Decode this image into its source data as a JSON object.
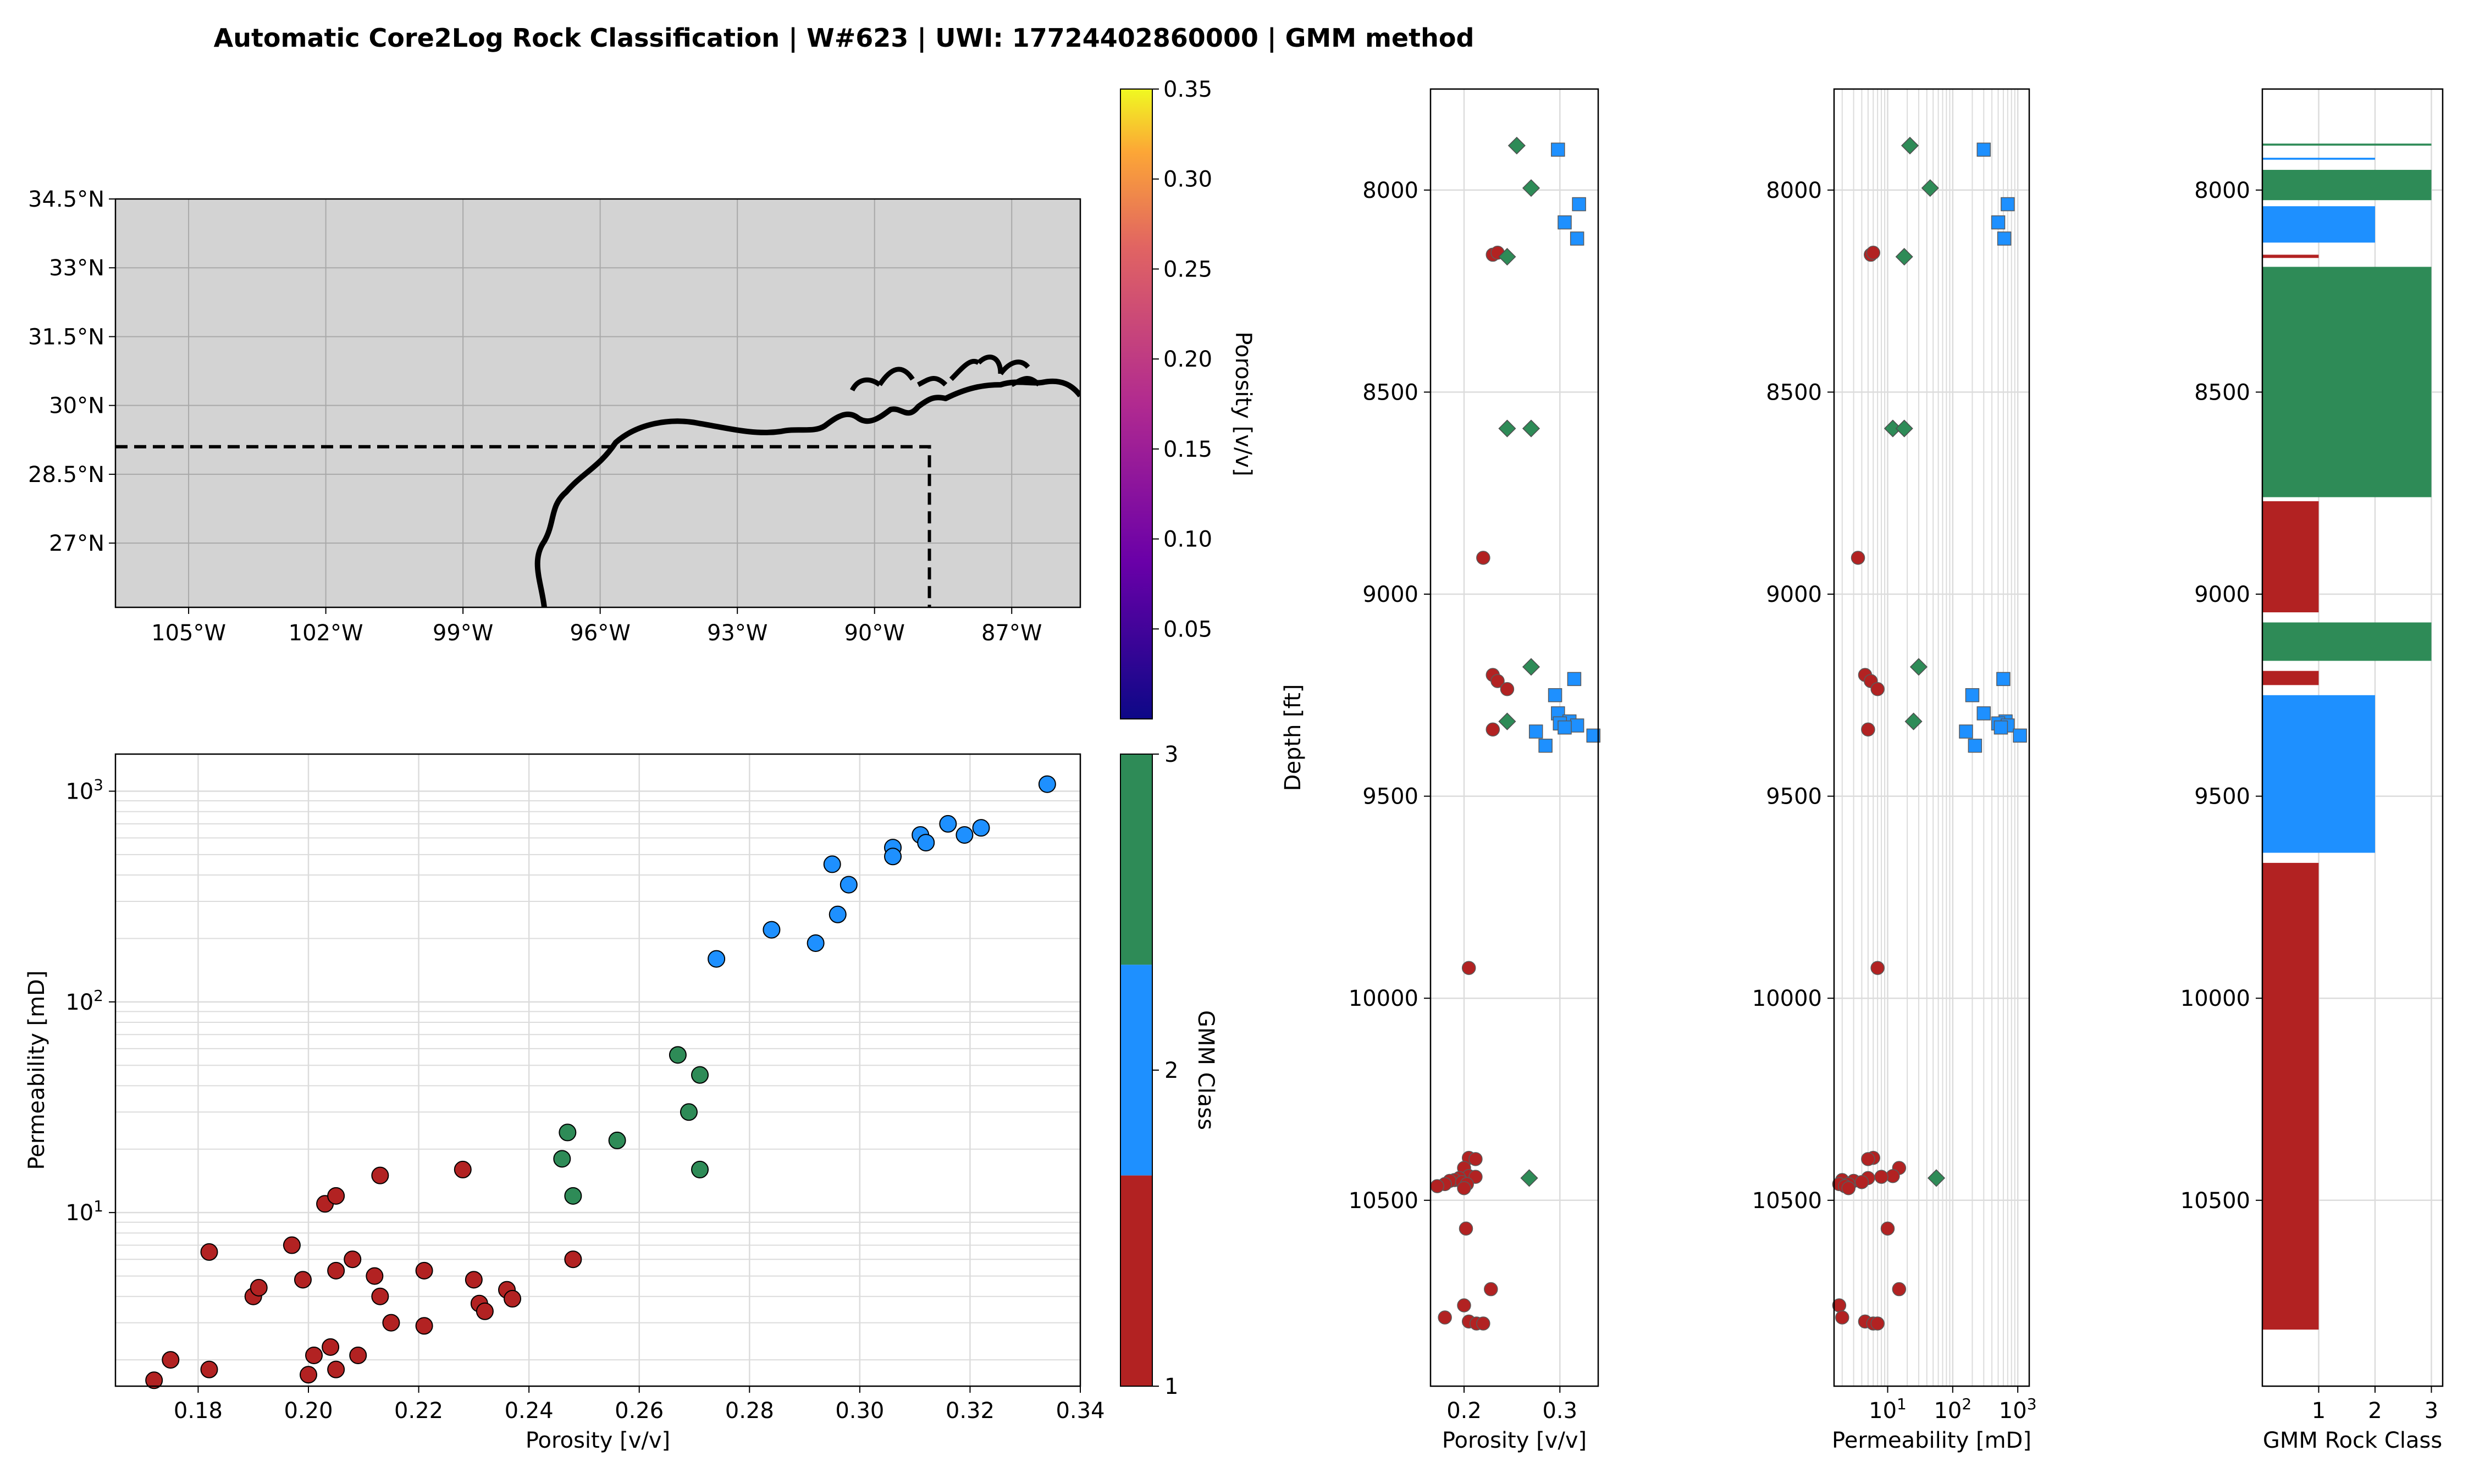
{
  "title": "Automatic Core2Log Rock Classification | W#623 | UWI: 17724402860000 | GMM method",
  "colors": {
    "class1": "#b22222",
    "class2": "#1e90ff",
    "class3": "#2e8b57",
    "map_bg": "#d3d3d3"
  },
  "chart_data": [
    {
      "type": "scatter",
      "name": "map",
      "xticks": [
        "105°W",
        "102°W",
        "99°W",
        "96°W",
        "93°W",
        "90°W",
        "87°W"
      ],
      "xtick_values": [
        -105,
        -102,
        -99,
        -96,
        -93,
        -90,
        -87
      ],
      "yticks": [
        "34.5°N",
        "33°N",
        "31.5°N",
        "30°N",
        "28.5°N",
        "27°N"
      ],
      "ytick_values": [
        34.5,
        33,
        31.5,
        30,
        28.5,
        27
      ],
      "xlim": [
        -106.6,
        -85.5
      ],
      "ylim": [
        25.6,
        34.5
      ],
      "colorbar": {
        "label": "Porosity [v/v]",
        "ticks": [
          "0.35",
          "0.30",
          "0.25",
          "0.20",
          "0.15",
          "0.10",
          "0.05"
        ],
        "tick_values": [
          0.35,
          0.3,
          0.25,
          0.2,
          0.15,
          0.1,
          0.05
        ],
        "range": [
          0.0,
          0.35
        ],
        "colormap": "plasma"
      },
      "box": {
        "lon": -88.8,
        "lat": 29.1
      },
      "grid": true
    },
    {
      "type": "scatter",
      "name": "crossplot",
      "xlabel": "Porosity [v/v]",
      "ylabel": "Permeability [mD]",
      "xticks": [
        "0.18",
        "0.20",
        "0.22",
        "0.24",
        "0.26",
        "0.28",
        "0.30",
        "0.32",
        "0.34"
      ],
      "xtick_values": [
        0.18,
        0.2,
        0.22,
        0.24,
        0.26,
        0.28,
        0.3,
        0.32,
        0.34
      ],
      "yticks": [
        {
          "b": "10",
          "e": "1"
        },
        {
          "b": "10",
          "e": "2"
        },
        {
          "b": "10",
          "e": "3"
        }
      ],
      "ytick_values": [
        10,
        100,
        1000
      ],
      "xlim": [
        0.165,
        0.34
      ],
      "ylim": [
        1.5,
        1500
      ],
      "yscale": "log",
      "colorbar": {
        "label": "GMM Class",
        "ticks": [
          "1",
          "2",
          "3"
        ]
      },
      "grid": true,
      "points": [
        [
          0.172,
          1.6,
          1
        ],
        [
          0.175,
          2.0,
          1
        ],
        [
          0.182,
          1.8,
          1
        ],
        [
          0.182,
          6.5,
          1
        ],
        [
          0.19,
          4.0,
          1
        ],
        [
          0.191,
          4.4,
          1
        ],
        [
          0.197,
          7.0,
          1
        ],
        [
          0.199,
          4.8,
          1
        ],
        [
          0.2,
          1.7,
          1
        ],
        [
          0.201,
          2.1,
          1
        ],
        [
          0.203,
          11.0,
          1
        ],
        [
          0.204,
          2.3,
          1
        ],
        [
          0.205,
          12.0,
          1
        ],
        [
          0.205,
          1.8,
          1
        ],
        [
          0.205,
          5.3,
          1
        ],
        [
          0.208,
          6.0,
          1
        ],
        [
          0.209,
          2.1,
          1
        ],
        [
          0.212,
          5.0,
          1
        ],
        [
          0.213,
          4.0,
          1
        ],
        [
          0.213,
          15.0,
          1
        ],
        [
          0.215,
          3.0,
          1
        ],
        [
          0.221,
          5.3,
          1
        ],
        [
          0.221,
          2.9,
          1
        ],
        [
          0.228,
          16.0,
          1
        ],
        [
          0.23,
          4.8,
          1
        ],
        [
          0.231,
          3.7,
          1
        ],
        [
          0.232,
          3.4,
          1
        ],
        [
          0.236,
          4.3,
          1
        ],
        [
          0.237,
          3.9,
          1
        ],
        [
          0.248,
          6.0,
          1
        ],
        [
          0.246,
          18.0,
          3
        ],
        [
          0.247,
          24.0,
          3
        ],
        [
          0.248,
          12.0,
          3
        ],
        [
          0.256,
          22.0,
          3
        ],
        [
          0.267,
          56.0,
          3
        ],
        [
          0.269,
          30.0,
          3
        ],
        [
          0.271,
          45.0,
          3
        ],
        [
          0.271,
          16.0,
          3
        ],
        [
          0.274,
          160,
          2
        ],
        [
          0.284,
          220,
          2
        ],
        [
          0.292,
          190,
          2
        ],
        [
          0.295,
          450,
          2
        ],
        [
          0.296,
          260,
          2
        ],
        [
          0.298,
          360,
          2
        ],
        [
          0.306,
          540,
          2
        ],
        [
          0.306,
          490,
          2
        ],
        [
          0.311,
          620,
          2
        ],
        [
          0.312,
          570,
          2
        ],
        [
          0.316,
          700,
          2
        ],
        [
          0.319,
          620,
          2
        ],
        [
          0.322,
          670,
          2
        ],
        [
          0.334,
          1080,
          2
        ]
      ]
    },
    {
      "type": "scatter",
      "name": "depth-porosity",
      "xlabel": "Porosity [v/v]",
      "ylabel": "Depth [ft]",
      "xticks": [
        "0.2",
        "0.3"
      ],
      "xtick_values": [
        0.2,
        0.3
      ],
      "yticks": [
        "8000",
        "8500",
        "9000",
        "9500",
        "10000",
        "10500"
      ],
      "ytick_values": [
        8000,
        8500,
        9000,
        9500,
        10000,
        10500
      ],
      "xlim": [
        0.165,
        0.34
      ],
      "ylim": [
        10960,
        7750
      ],
      "grid": true,
      "points": [
        [
          0.255,
          7890,
          3
        ],
        [
          0.298,
          7900,
          2
        ],
        [
          0.27,
          7995,
          3
        ],
        [
          0.32,
          8035,
          2
        ],
        [
          0.305,
          8080,
          2
        ],
        [
          0.318,
          8120,
          2
        ],
        [
          0.23,
          8160,
          1
        ],
        [
          0.235,
          8155,
          1
        ],
        [
          0.245,
          8165,
          3
        ],
        [
          0.245,
          8590,
          3
        ],
        [
          0.27,
          8590,
          3
        ],
        [
          0.22,
          8910,
          1
        ],
        [
          0.27,
          9180,
          3
        ],
        [
          0.315,
          9210,
          2
        ],
        [
          0.23,
          9200,
          1
        ],
        [
          0.235,
          9215,
          1
        ],
        [
          0.245,
          9235,
          1
        ],
        [
          0.295,
          9250,
          2
        ],
        [
          0.298,
          9295,
          2
        ],
        [
          0.245,
          9315,
          3
        ],
        [
          0.31,
          9315,
          2
        ],
        [
          0.3,
          9320,
          2
        ],
        [
          0.318,
          9325,
          2
        ],
        [
          0.305,
          9330,
          2
        ],
        [
          0.23,
          9335,
          1
        ],
        [
          0.275,
          9340,
          2
        ],
        [
          0.335,
          9350,
          2
        ],
        [
          0.285,
          9375,
          2
        ],
        [
          0.205,
          9925,
          1
        ],
        [
          0.205,
          10395,
          1
        ],
        [
          0.212,
          10398,
          1
        ],
        [
          0.2,
          10420,
          1
        ],
        [
          0.268,
          10445,
          3
        ],
        [
          0.205,
          10440,
          1
        ],
        [
          0.212,
          10442,
          1
        ],
        [
          0.195,
          10445,
          1
        ],
        [
          0.19,
          10450,
          1
        ],
        [
          0.185,
          10452,
          1
        ],
        [
          0.198,
          10455,
          1
        ],
        [
          0.203,
          10460,
          1
        ],
        [
          0.18,
          10460,
          1
        ],
        [
          0.172,
          10465,
          1
        ],
        [
          0.2,
          10470,
          1
        ],
        [
          0.202,
          10570,
          1
        ],
        [
          0.228,
          10720,
          1
        ],
        [
          0.2,
          10760,
          1
        ],
        [
          0.18,
          10790,
          1
        ],
        [
          0.205,
          10800,
          1
        ],
        [
          0.213,
          10805,
          1
        ],
        [
          0.22,
          10805,
          1
        ]
      ]
    },
    {
      "type": "scatter",
      "name": "depth-permeability",
      "xlabel": "Permeability [mD]",
      "xticks": [
        {
          "b": "10",
          "e": "1"
        },
        {
          "b": "10",
          "e": "2"
        },
        {
          "b": "10",
          "e": "3"
        }
      ],
      "xtick_values": [
        10,
        100,
        1000
      ],
      "yticks": [
        "8000",
        "8500",
        "9000",
        "9500",
        "10000",
        "10500"
      ],
      "ytick_values": [
        8000,
        8500,
        9000,
        9500,
        10000,
        10500
      ],
      "xlim": [
        1.5,
        1500
      ],
      "xscale": "log",
      "ylim": [
        10960,
        7750
      ],
      "grid": true,
      "points": [
        [
          22,
          7890,
          3
        ],
        [
          300,
          7900,
          2
        ],
        [
          45,
          7995,
          3
        ],
        [
          700,
          8035,
          2
        ],
        [
          500,
          8080,
          2
        ],
        [
          620,
          8120,
          2
        ],
        [
          5.5,
          8160,
          1
        ],
        [
          6,
          8155,
          1
        ],
        [
          18,
          8165,
          3
        ],
        [
          12,
          8590,
          3
        ],
        [
          18,
          8590,
          3
        ],
        [
          3.5,
          8910,
          1
        ],
        [
          30,
          9180,
          3
        ],
        [
          600,
          9210,
          2
        ],
        [
          4.5,
          9200,
          1
        ],
        [
          5.5,
          9215,
          1
        ],
        [
          7,
          9235,
          1
        ],
        [
          200,
          9250,
          2
        ],
        [
          300,
          9295,
          2
        ],
        [
          25,
          9315,
          3
        ],
        [
          650,
          9315,
          2
        ],
        [
          500,
          9320,
          2
        ],
        [
          700,
          9325,
          2
        ],
        [
          550,
          9330,
          2
        ],
        [
          5,
          9335,
          1
        ],
        [
          160,
          9340,
          2
        ],
        [
          1080,
          9350,
          2
        ],
        [
          220,
          9375,
          2
        ],
        [
          7,
          9925,
          1
        ],
        [
          6,
          10395,
          1
        ],
        [
          5,
          10398,
          1
        ],
        [
          15,
          10420,
          1
        ],
        [
          56,
          10445,
          3
        ],
        [
          12,
          10440,
          1
        ],
        [
          8,
          10442,
          1
        ],
        [
          5,
          10445,
          1
        ],
        [
          2,
          10450,
          1
        ],
        [
          3,
          10452,
          1
        ],
        [
          4,
          10455,
          1
        ],
        [
          2.5,
          10460,
          1
        ],
        [
          1.8,
          10460,
          1
        ],
        [
          2.2,
          10465,
          1
        ],
        [
          2.5,
          10470,
          1
        ],
        [
          10,
          10570,
          1
        ],
        [
          15,
          10720,
          1
        ],
        [
          1.8,
          10760,
          1
        ],
        [
          2,
          10790,
          1
        ],
        [
          4.5,
          10800,
          1
        ],
        [
          6,
          10805,
          1
        ],
        [
          7,
          10805,
          1
        ]
      ]
    },
    {
      "type": "bar",
      "name": "gmm-track",
      "xlabel": "GMM Rock Class",
      "xticks": [
        "1",
        "2",
        "3"
      ],
      "xtick_values": [
        1,
        2,
        3
      ],
      "yticks": [
        "8000",
        "8500",
        "9000",
        "9500",
        "10000",
        "10500"
      ],
      "ytick_values": [
        8000,
        8500,
        9000,
        9500,
        10000,
        10500
      ],
      "xlim": [
        0,
        3.2
      ],
      "ylim": [
        10960,
        7750
      ],
      "grid": true,
      "intervals": [
        [
          7885,
          7890,
          3
        ],
        [
          7920,
          7925,
          2
        ],
        [
          7950,
          8025,
          3
        ],
        [
          8040,
          8130,
          2
        ],
        [
          8160,
          8168,
          1
        ],
        [
          8190,
          8760,
          3
        ],
        [
          8770,
          9045,
          1
        ],
        [
          9070,
          9165,
          3
        ],
        [
          9190,
          9225,
          1
        ],
        [
          9250,
          9640,
          2
        ],
        [
          9665,
          10820,
          1
        ]
      ]
    }
  ]
}
